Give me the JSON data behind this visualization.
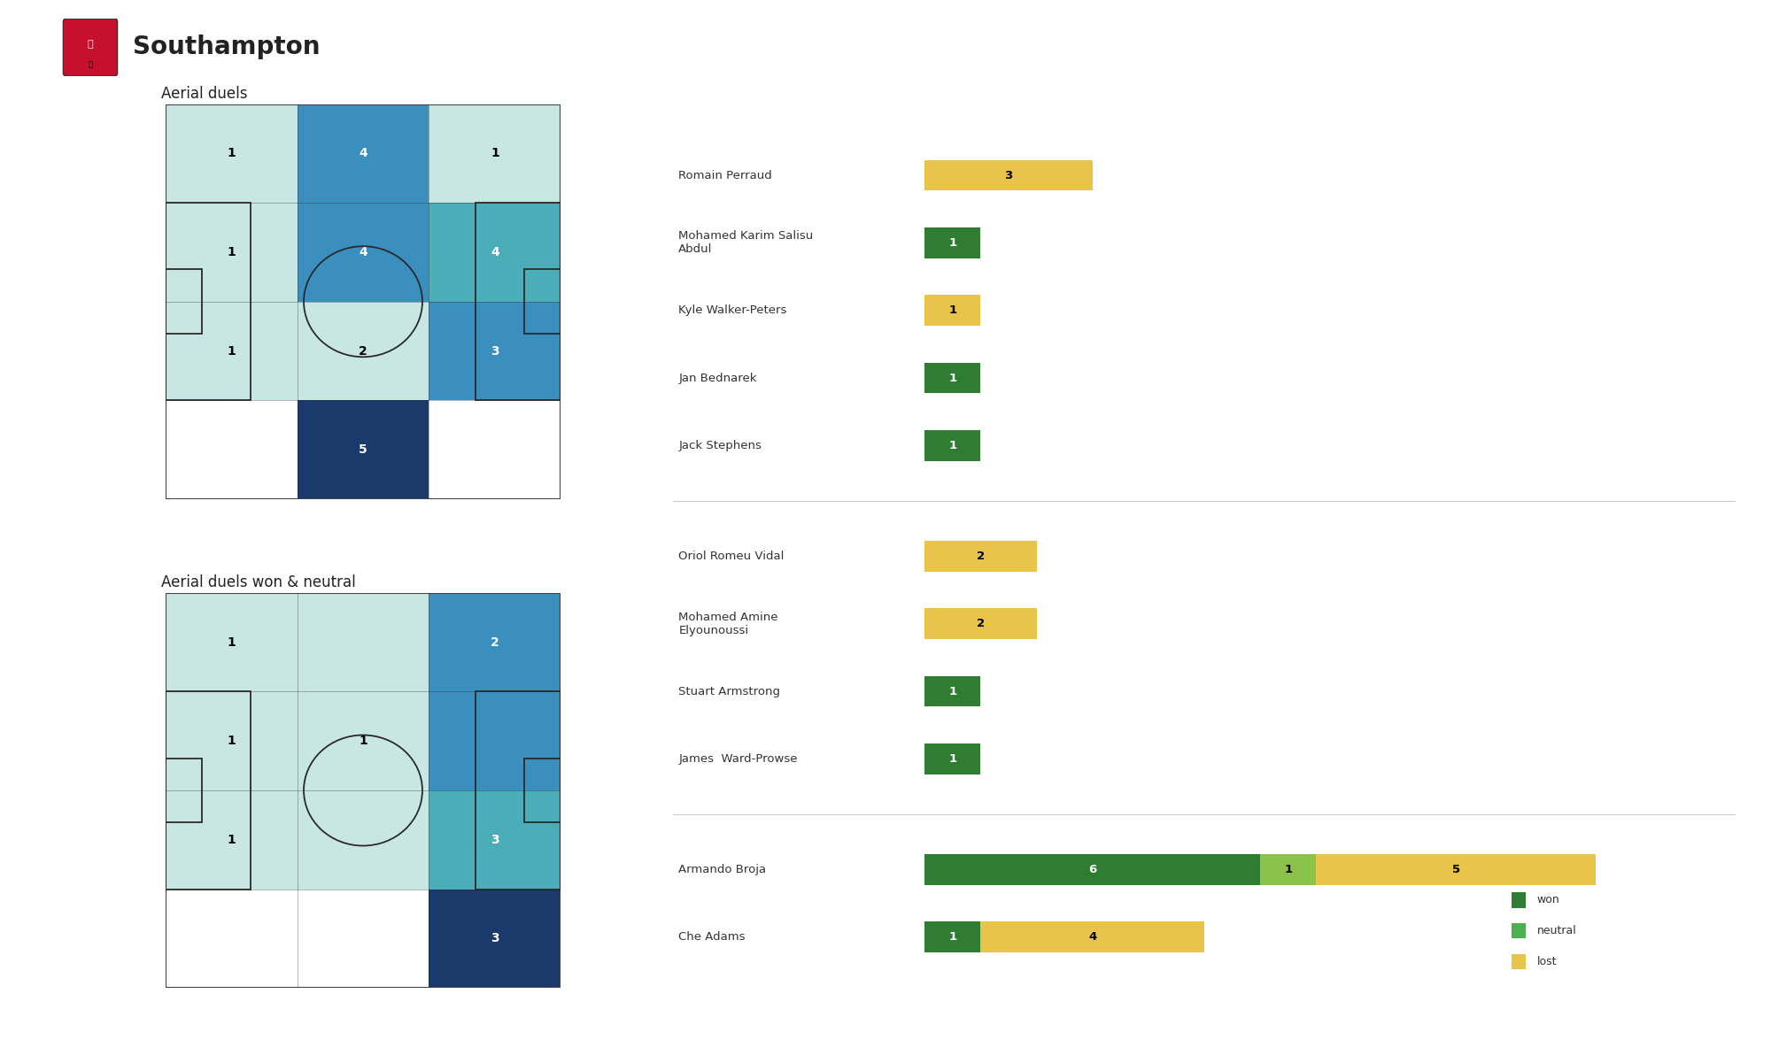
{
  "title": "Southampton",
  "subtitle1": "Aerial duels",
  "subtitle2": "Aerial duels won & neutral",
  "pitch1_grid": {
    "rows": 4,
    "cols": 3,
    "colors": [
      [
        "#c8e6e2",
        "#3a8fbf",
        "#c8e6e2"
      ],
      [
        "#c8e6e2",
        "#3a8fbf",
        "#4badb8"
      ],
      [
        "#c8e6e2",
        "#c8e6e2",
        "#3a8fbf"
      ],
      [
        "#ffffff",
        "#1a3a6b",
        "#ffffff"
      ]
    ],
    "numbers": [
      [
        "1",
        "4",
        "1"
      ],
      [
        "1",
        "4",
        "4"
      ],
      [
        "1",
        "2",
        "3"
      ],
      [
        "",
        "5",
        ""
      ]
    ],
    "num_colors": [
      [
        "black",
        "white",
        "black"
      ],
      [
        "black",
        "white",
        "white"
      ],
      [
        "black",
        "black",
        "white"
      ],
      [
        "white",
        "white",
        "white"
      ]
    ]
  },
  "pitch2_grid": {
    "rows": 4,
    "cols": 3,
    "colors": [
      [
        "#c8e6e2",
        "#c8e6e2",
        "#3a8fbf"
      ],
      [
        "#c8e6e2",
        "#c8e6e2",
        "#3a8fbf"
      ],
      [
        "#c8e6e2",
        "#c8e6e2",
        "#4badb8"
      ],
      [
        "#ffffff",
        "#ffffff",
        "#1a3a6b"
      ]
    ],
    "numbers": [
      [
        "1",
        "",
        "2"
      ],
      [
        "1",
        "1",
        ""
      ],
      [
        "1",
        "",
        "3"
      ],
      [
        "",
        "",
        "3"
      ]
    ],
    "num_colors": [
      [
        "black",
        "white",
        "white"
      ],
      [
        "black",
        "black",
        "white"
      ],
      [
        "black",
        "white",
        "white"
      ],
      [
        "white",
        "white",
        "white"
      ]
    ]
  },
  "players": [
    {
      "name": "Romain Perraud",
      "won": 0,
      "neutral": 0,
      "lost": 3
    },
    {
      "name": "Mohamed Karim Salisu\nAbdul",
      "won": 1,
      "neutral": 0,
      "lost": 0
    },
    {
      "name": "Kyle Walker-Peters",
      "won": 0,
      "neutral": 0,
      "lost": 1
    },
    {
      "name": "Jan Bednarek",
      "won": 1,
      "neutral": 0,
      "lost": 0
    },
    {
      "name": "Jack Stephens",
      "won": 1,
      "neutral": 0,
      "lost": 0
    },
    {
      "name": "Oriol Romeu Vidal",
      "won": 0,
      "neutral": 0,
      "lost": 2
    },
    {
      "name": "Mohamed Amine\nElyounoussi",
      "won": 0,
      "neutral": 0,
      "lost": 2
    },
    {
      "name": "Stuart Armstrong",
      "won": 1,
      "neutral": 0,
      "lost": 0
    },
    {
      "name": "James  Ward-Prowse",
      "won": 1,
      "neutral": 0,
      "lost": 0
    },
    {
      "name": "Armando Broja",
      "won": 6,
      "neutral": 1,
      "lost": 5
    },
    {
      "name": "Che Adams",
      "won": 1,
      "neutral": 0,
      "lost": 4
    }
  ],
  "color_won": "#2e7d32",
  "color_neutral": "#8BC34A",
  "color_lost": "#e8c54a",
  "separator_after": [
    4,
    8
  ],
  "bg_color": "#ffffff",
  "field_line_color": "#2a2a2a"
}
